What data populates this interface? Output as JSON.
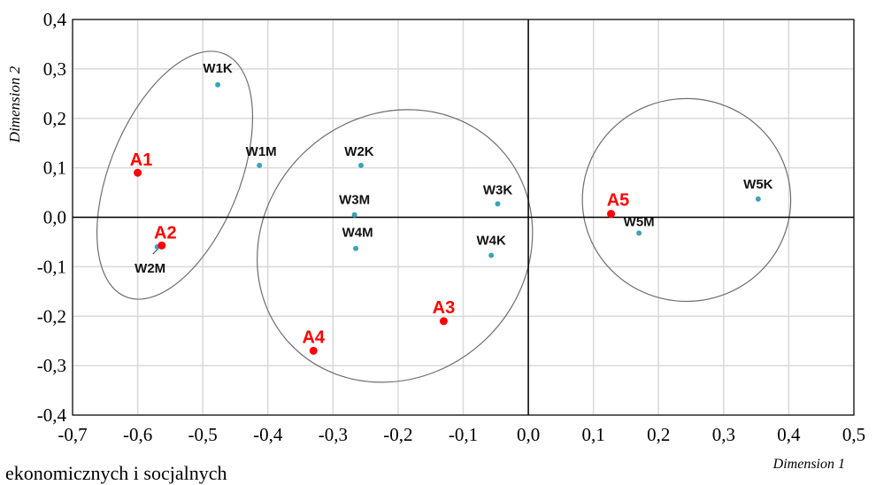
{
  "colors": {
    "a_series": "#ff0000",
    "w_series": "#3ba3b8",
    "grid": "#d9d9d9",
    "ellipse": "#6e6e6e"
  },
  "chart_data": {
    "type": "scatter",
    "xlabel": "Dimension 1",
    "ylabel": "Dimension 2",
    "xlim": [
      -0.7,
      0.5
    ],
    "ylim": [
      -0.4,
      0.4
    ],
    "grid": true,
    "x_ticks": [
      "-0,7",
      "-0,6",
      "-0,5",
      "-0,4",
      "-0,3",
      "-0,2",
      "-0,1",
      "0,0",
      "0,1",
      "0,2",
      "0,3",
      "0,4",
      "0,5"
    ],
    "y_ticks": [
      "0,4",
      "0,3",
      "0,2",
      "0,1",
      "0,0",
      "-0,1",
      "-0,2",
      "-0,3",
      "-0,4"
    ],
    "series": [
      {
        "points": [
          {
            "label": "A1",
            "x": -0.6,
            "y": 0.09
          },
          {
            "label": "A2",
            "x": -0.563,
            "y": -0.057
          },
          {
            "label": "A3",
            "x": -0.13,
            "y": -0.21
          },
          {
            "label": "A4",
            "x": -0.33,
            "y": -0.27
          },
          {
            "label": "A5",
            "x": 0.127,
            "y": 0.007
          }
        ]
      },
      {
        "points": [
          {
            "label": "W1K",
            "x": -0.477,
            "y": 0.268
          },
          {
            "label": "W1M",
            "x": -0.413,
            "y": 0.105
          },
          {
            "label": "W2K",
            "x": -0.257,
            "y": 0.105
          },
          {
            "label": "W2M",
            "x": -0.57,
            "y": -0.06
          },
          {
            "label": "W3K",
            "x": -0.047,
            "y": 0.027
          },
          {
            "label": "W3M",
            "x": -0.267,
            "y": 0.005
          },
          {
            "label": "W4K",
            "x": -0.057,
            "y": -0.077
          },
          {
            "label": "W4M",
            "x": -0.265,
            "y": -0.063
          },
          {
            "label": "W5K",
            "x": 0.353,
            "y": 0.037
          },
          {
            "label": "W5M",
            "x": 0.17,
            "y": -0.032
          }
        ]
      }
    ],
    "ellipses": [
      {
        "cx": -0.543,
        "cy": 0.085,
        "rx": 0.1,
        "ry": 0.265,
        "rotation": 22
      },
      {
        "cx": -0.205,
        "cy": -0.058,
        "rx": 0.2,
        "ry": 0.29,
        "rotation": 48
      },
      {
        "cx": 0.243,
        "cy": 0.035,
        "rx": 0.16,
        "ry": 0.205,
        "rotation": 0
      }
    ]
  },
  "caption": "ekonomicznych i socjalnych"
}
